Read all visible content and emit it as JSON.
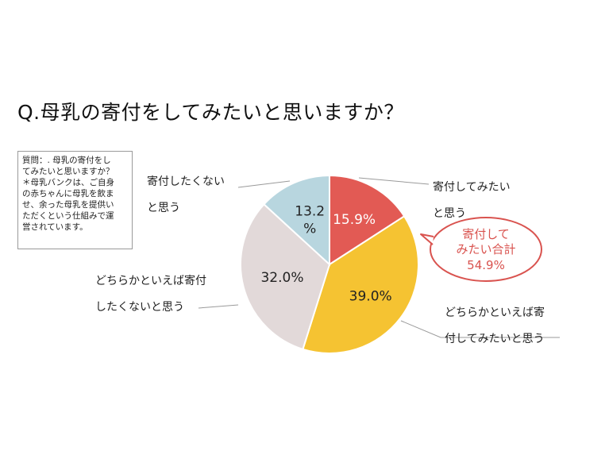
{
  "title": "Q.母乳の寄付をしてみたいと思いますか？",
  "question_note": {
    "lines": [
      "質問：. 母乳の寄付をし",
      "てみたいと思いますか？",
      "＊母乳バンクは、ご自身",
      "の赤ちゃんに母乳を飲ま",
      "せ、余った母乳を提供い",
      "ただくという仕組みで運",
      "営されています。"
    ]
  },
  "callout": {
    "lines": [
      "寄付して",
      "みたい合計",
      "54.9%"
    ],
    "color": "#d9534f"
  },
  "chart_data": {
    "type": "pie",
    "title": "",
    "slices": [
      {
        "label_lines": [
          "寄付してみたい",
          "と思う"
        ],
        "value": 15.9,
        "value_text": [
          "15.9%"
        ],
        "color": "#e25a54",
        "text_color": "#ffffff"
      },
      {
        "label_lines": [
          "どちらかといえば寄",
          "付してみたいと思う"
        ],
        "value": 39.0,
        "value_text": [
          "39.0%"
        ],
        "color": "#f5c332",
        "text_color": "#222222"
      },
      {
        "label_lines": [
          "どちらかといえば寄付",
          "したくないと思う"
        ],
        "value": 32.0,
        "value_text": [
          "32.0%"
        ],
        "color": "#e2d9d9",
        "text_color": "#222222"
      },
      {
        "label_lines": [
          "寄付したくない",
          "と思う"
        ],
        "value": 13.2,
        "value_text": [
          "13.2",
          "%"
        ],
        "color": "#b8d6df",
        "text_color": "#222222"
      }
    ],
    "start_angle": "12 o'clock",
    "direction": "clockwise"
  }
}
